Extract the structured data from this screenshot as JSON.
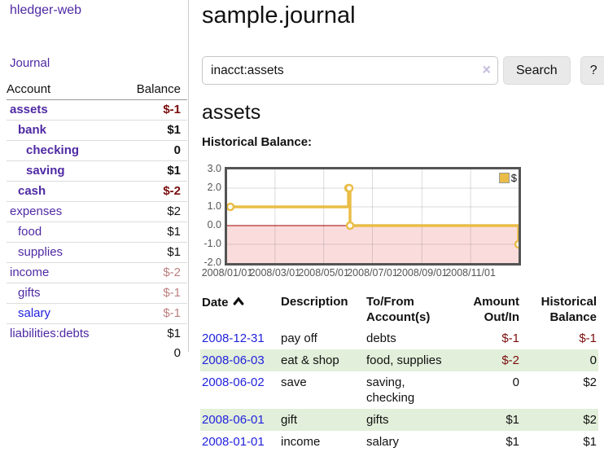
{
  "sidebar": {
    "brand": "hledger-web",
    "nav_journal": "Journal",
    "accounts_table": {
      "account_header": "Account",
      "balance_header": "Balance",
      "rows": [
        {
          "name": "assets",
          "balance": "$-1",
          "depth": "d1",
          "weight": "bold",
          "bal": "neg",
          "link": ""
        },
        {
          "name": "bank",
          "balance": "$1",
          "depth": "d2",
          "weight": "bold",
          "bal": "",
          "link": ""
        },
        {
          "name": "checking",
          "balance": "0",
          "depth": "d3",
          "weight": "bold",
          "bal": "",
          "link": ""
        },
        {
          "name": "saving",
          "balance": "$1",
          "depth": "d3",
          "weight": "bold",
          "bal": "",
          "link": ""
        },
        {
          "name": "cash",
          "balance": "$-2",
          "depth": "d2",
          "weight": "bold",
          "bal": "neg",
          "link": ""
        },
        {
          "name": "expenses",
          "balance": "$2",
          "depth": "d1",
          "weight": "",
          "bal": "",
          "link": ""
        },
        {
          "name": "food",
          "balance": "$1",
          "depth": "d2",
          "weight": "",
          "bal": "",
          "link": ""
        },
        {
          "name": "supplies",
          "balance": "$1",
          "depth": "d2",
          "weight": "",
          "bal": "",
          "link": ""
        },
        {
          "name": "income",
          "balance": "$-2",
          "depth": "d1",
          "weight": "",
          "bal": "negw",
          "link": ""
        },
        {
          "name": "gifts",
          "balance": "$-1",
          "depth": "d2",
          "weight": "",
          "bal": "negw",
          "link": ""
        },
        {
          "name": "salary",
          "balance": "$-1",
          "depth": "d2",
          "weight": "",
          "bal": "negw",
          "link": "blue"
        },
        {
          "name": "liabilities:debts",
          "balance": "$1",
          "depth": "d1",
          "weight": "",
          "bal": "",
          "link": ""
        }
      ],
      "total": "0"
    }
  },
  "main": {
    "title": "sample.journal",
    "search": {
      "value": "inacct:assets",
      "clear_icon": "×",
      "search_button": "Search",
      "help_button": "?"
    },
    "account_heading": "assets",
    "chart_label": "Historical Balance:"
  },
  "journal_table": {
    "headers": [
      "Date",
      "Description",
      "To/From\nAccount(s)",
      "Amount\nOut/In",
      "Historical\nBalance"
    ],
    "rows": [
      {
        "date": "2008-12-31",
        "description": "pay off",
        "accounts": "debts",
        "amount": "$-1",
        "amount_class": "neg",
        "balance": "$-1",
        "balance_class": "neg"
      },
      {
        "date": "2008-06-03",
        "description": "eat & shop",
        "accounts": "food, supplies",
        "amount": "$-2",
        "amount_class": "neg",
        "balance": "0",
        "balance_class": ""
      },
      {
        "date": "2008-06-02",
        "description": "save",
        "accounts": "saving,\nchecking",
        "amount": "0",
        "amount_class": "",
        "balance": "$2",
        "balance_class": ""
      },
      {
        "date": "2008-06-01",
        "description": "gift",
        "accounts": "gifts",
        "amount": "$1",
        "amount_class": "",
        "balance": "$2",
        "balance_class": ""
      },
      {
        "date": "2008-01-01",
        "description": "income",
        "accounts": "salary",
        "amount": "$1",
        "amount_class": "",
        "balance": "$1",
        "balance_class": ""
      }
    ]
  },
  "chart_data": {
    "type": "line",
    "title": "Historical Balance:",
    "step": true,
    "series": [
      {
        "name": "$",
        "color": "#e9bd47",
        "points": [
          [
            "2008-01-01",
            1
          ],
          [
            "2008-06-01",
            2
          ],
          [
            "2008-06-02",
            2
          ],
          [
            "2008-06-03",
            0
          ],
          [
            "2008-12-31",
            -1
          ]
        ]
      }
    ],
    "xlim": [
      "2008-01-01",
      "2008-12-31"
    ],
    "ylim": [
      -2,
      3
    ],
    "y_ticks": [
      3,
      2,
      1,
      0,
      -1,
      -2
    ],
    "y_tick_labels": [
      "3.0",
      "2.0",
      "1.0",
      "0.0",
      "-1.0",
      "-2.0"
    ],
    "x_ticks": [
      "2008-01-01",
      "2008-03-01",
      "2008-05-01",
      "2008-07-01",
      "2008-09-01",
      "2008-11-01"
    ],
    "x_tick_labels": [
      "2008/01/01",
      "2008/03/01",
      "2008/05/01",
      "2008/07/01",
      "2008/09/01",
      "2008/11/01"
    ],
    "negative_region_color": "#fbdcdc",
    "zero_line_color": "#a00000",
    "legend": {
      "label": "$",
      "position": "top-right"
    }
  },
  "colors": {
    "link_purple": "#4f2aa3",
    "link_blue": "#2222dd",
    "negative_strong": "#7a0d0d",
    "negative_weak": "#bd7f7f",
    "row_shade_green": "#e2efda",
    "chart_line_gold": "#e9bd47",
    "chart_negative_bg": "#fbdcdc",
    "chart_zero_line": "#a00000",
    "button_bg": "#e9e9e9"
  }
}
